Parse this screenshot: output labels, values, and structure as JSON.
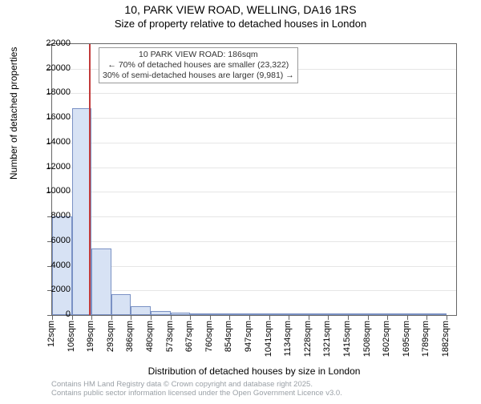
{
  "title_line1": "10, PARK VIEW ROAD, WELLING, DA16 1RS",
  "title_line2": "Size of property relative to detached houses in London",
  "ylabel": "Number of detached properties",
  "xlabel": "Distribution of detached houses by size in London",
  "footer_line1": "Contains HM Land Registry data © Crown copyright and database right 2025.",
  "footer_line2": "Contains public sector information licensed under the Open Government Licence v3.0.",
  "chart": {
    "type": "histogram",
    "background_color": "#ffffff",
    "grid_color": "#e6e6e6",
    "axis_color": "#666666",
    "bar_fill": "#d7e2f4",
    "bar_border": "#7a91c4",
    "marker_color": "#c23b3b",
    "xlim": [
      12,
      1928
    ],
    "ylim": [
      0,
      22000
    ],
    "yticks": [
      0,
      2000,
      4000,
      6000,
      8000,
      10000,
      12000,
      14000,
      16000,
      18000,
      20000,
      22000
    ],
    "xticks": [
      12,
      106,
      199,
      293,
      386,
      480,
      573,
      667,
      760,
      854,
      947,
      1041,
      1134,
      1228,
      1321,
      1415,
      1508,
      1602,
      1695,
      1789,
      1882
    ],
    "xtick_suffix": "sqm",
    "bars": [
      {
        "x0": 12,
        "x1": 106,
        "y": 8000
      },
      {
        "x0": 106,
        "x1": 199,
        "y": 16800
      },
      {
        "x0": 199,
        "x1": 293,
        "y": 5400
      },
      {
        "x0": 293,
        "x1": 386,
        "y": 1700
      },
      {
        "x0": 386,
        "x1": 480,
        "y": 700
      },
      {
        "x0": 480,
        "x1": 573,
        "y": 350
      },
      {
        "x0": 573,
        "x1": 667,
        "y": 200
      },
      {
        "x0": 667,
        "x1": 760,
        "y": 120
      },
      {
        "x0": 760,
        "x1": 854,
        "y": 90
      },
      {
        "x0": 854,
        "x1": 947,
        "y": 60
      },
      {
        "x0": 947,
        "x1": 1041,
        "y": 40
      },
      {
        "x0": 1041,
        "x1": 1134,
        "y": 30
      },
      {
        "x0": 1134,
        "x1": 1228,
        "y": 20
      },
      {
        "x0": 1228,
        "x1": 1321,
        "y": 15
      },
      {
        "x0": 1321,
        "x1": 1415,
        "y": 10
      },
      {
        "x0": 1415,
        "x1": 1508,
        "y": 10
      },
      {
        "x0": 1508,
        "x1": 1602,
        "y": 8
      },
      {
        "x0": 1602,
        "x1": 1695,
        "y": 6
      },
      {
        "x0": 1695,
        "x1": 1789,
        "y": 5
      },
      {
        "x0": 1789,
        "x1": 1882,
        "y": 4
      }
    ],
    "marker_x": 186,
    "annotation": {
      "line1": "10 PARK VIEW ROAD: 186sqm",
      "line2": "← 70% of detached houses are smaller (23,322)",
      "line3": "30% of semi-detached houses are larger (9,981) →"
    },
    "title_fontsize": 14,
    "subtitle_fontsize": 13,
    "label_fontsize": 12,
    "tick_fontsize": 11,
    "annotation_fontsize": 10.5,
    "footer_fontsize": 9.5
  }
}
